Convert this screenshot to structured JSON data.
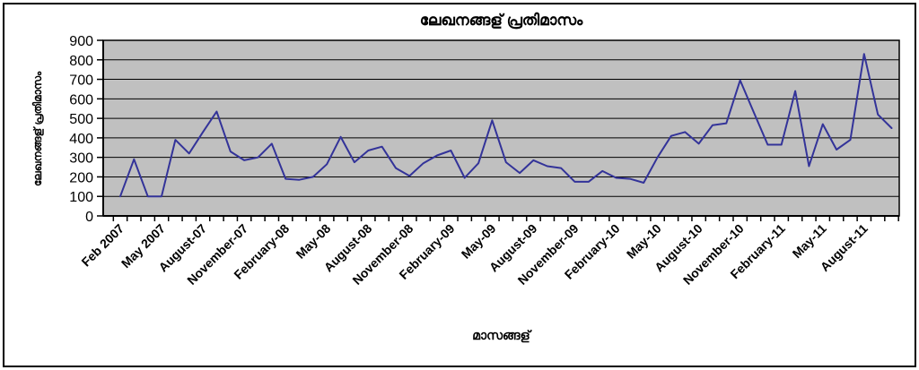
{
  "chart_data": {
    "type": "line",
    "title": "ലേഖനങ്ങള് പ്രതിമാസം",
    "xlabel": "മാസങ്ങള്",
    "ylabel": "ലേഖനങ്ങള് പ്രതിമാസം",
    "ylim": [
      0,
      900
    ],
    "ytick_step": 100,
    "y_tick_labels": [
      "0",
      "100",
      "200",
      "300",
      "400",
      "500",
      "600",
      "700",
      "800",
      "900"
    ],
    "x_tick_labels": [
      "Feb 2007",
      "May 2007",
      "August-07",
      "November-07",
      "February-08",
      "May-08",
      "August-08",
      "November-08",
      "February-09",
      "May-09",
      "August-09",
      "November-09",
      "February-10",
      "May-10",
      "August-10",
      "November-10",
      "February-11",
      "May-11",
      "August-11"
    ],
    "x_tick_label_every": 3,
    "x_start_label": "Feb 2007",
    "n_points": 57,
    "values": [
      100,
      290,
      100,
      100,
      390,
      320,
      430,
      535,
      330,
      285,
      300,
      370,
      190,
      185,
      200,
      265,
      405,
      275,
      335,
      355,
      245,
      205,
      270,
      310,
      335,
      195,
      270,
      490,
      275,
      220,
      285,
      255,
      245,
      175,
      175,
      230,
      195,
      190,
      170,
      300,
      410,
      430,
      370,
      465,
      475,
      695,
      530,
      365,
      365,
      640,
      255,
      470,
      340,
      390,
      830,
      520,
      450
    ],
    "grid": "horizontal",
    "legend": "none",
    "colors": {
      "line": "#333399",
      "plot_background": "#C0C0C0",
      "grid": "#000000",
      "axis": "#000000",
      "text": "#000000",
      "chart_background": "#FFFFFF",
      "frame_border": "#000000"
    }
  }
}
